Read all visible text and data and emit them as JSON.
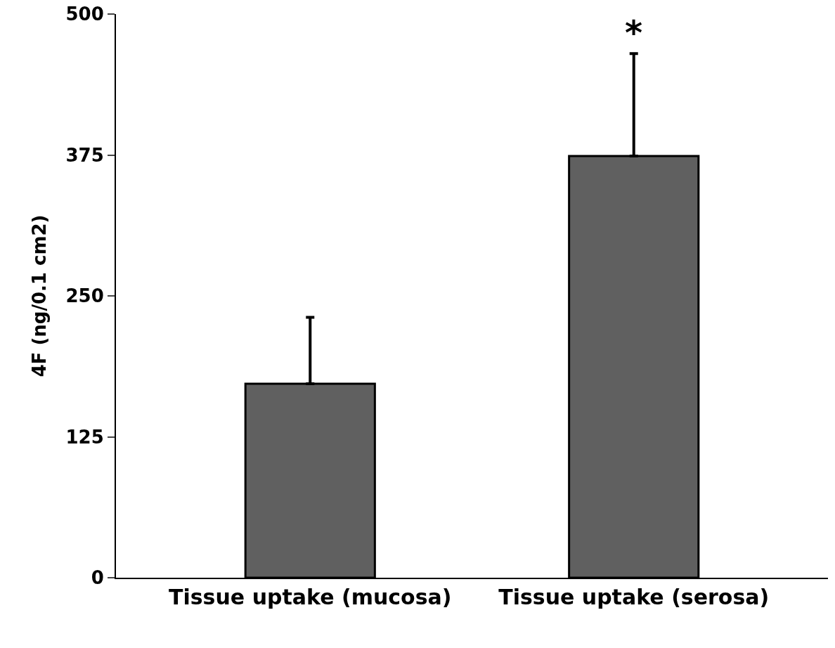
{
  "chart_data": {
    "type": "bar",
    "ylabel": "4F (ng/0.1 cm2)",
    "categories": [
      "Tissue uptake (mucosa)",
      "Tissue uptake (serosa)"
    ],
    "values": [
      172,
      374
    ],
    "color": "#606060",
    "errors": [
      [
        172,
        231
      ],
      [
        374,
        465
      ]
    ],
    "ylim": [
      0,
      500
    ],
    "yticks": [
      0,
      125,
      250,
      375,
      500
    ],
    "grid": false,
    "annotations": [
      {
        "text": "*",
        "x": "Tissue uptake (serosa)",
        "y": 465
      }
    ]
  }
}
